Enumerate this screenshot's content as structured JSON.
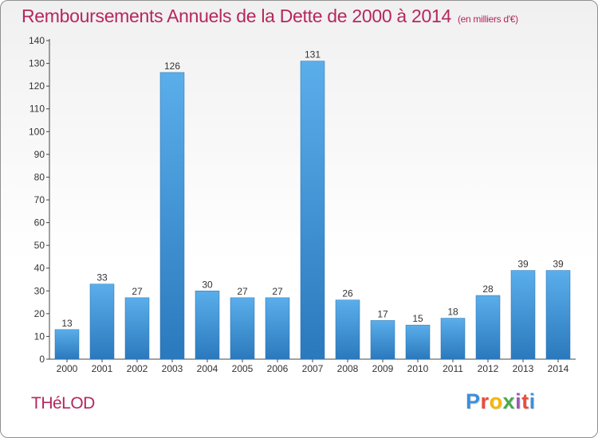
{
  "header": {
    "title": "Remboursements Annuels de la Dette de 2000 à 2014",
    "unit": "(en milliers d'€)"
  },
  "footer": {
    "commune": "THéLOD",
    "logo": {
      "text": "Proxiti",
      "colors": [
        "#3d8fd6",
        "#e94e3b",
        "#f2b705",
        "#4aa84a",
        "#9b59b6",
        "#e94e3b",
        "#3d8fd6"
      ]
    }
  },
  "chart_data": {
    "type": "bar",
    "title": "Remboursements Annuels de la Dette de 2000 à 2014",
    "xlabel": "",
    "ylabel": "",
    "categories": [
      "2000",
      "2001",
      "2002",
      "2003",
      "2004",
      "2005",
      "2006",
      "2007",
      "2008",
      "2009",
      "2010",
      "2011",
      "2012",
      "2013",
      "2014"
    ],
    "values": [
      13,
      33,
      27,
      126,
      30,
      27,
      27,
      131,
      26,
      17,
      15,
      18,
      28,
      39,
      39
    ],
    "ylim": [
      0,
      140
    ],
    "yticks": [
      0,
      10,
      20,
      30,
      40,
      50,
      60,
      70,
      80,
      90,
      100,
      110,
      120,
      130,
      140
    ],
    "grid": false,
    "bar_color": "#3d8ed6",
    "legend": "none"
  }
}
